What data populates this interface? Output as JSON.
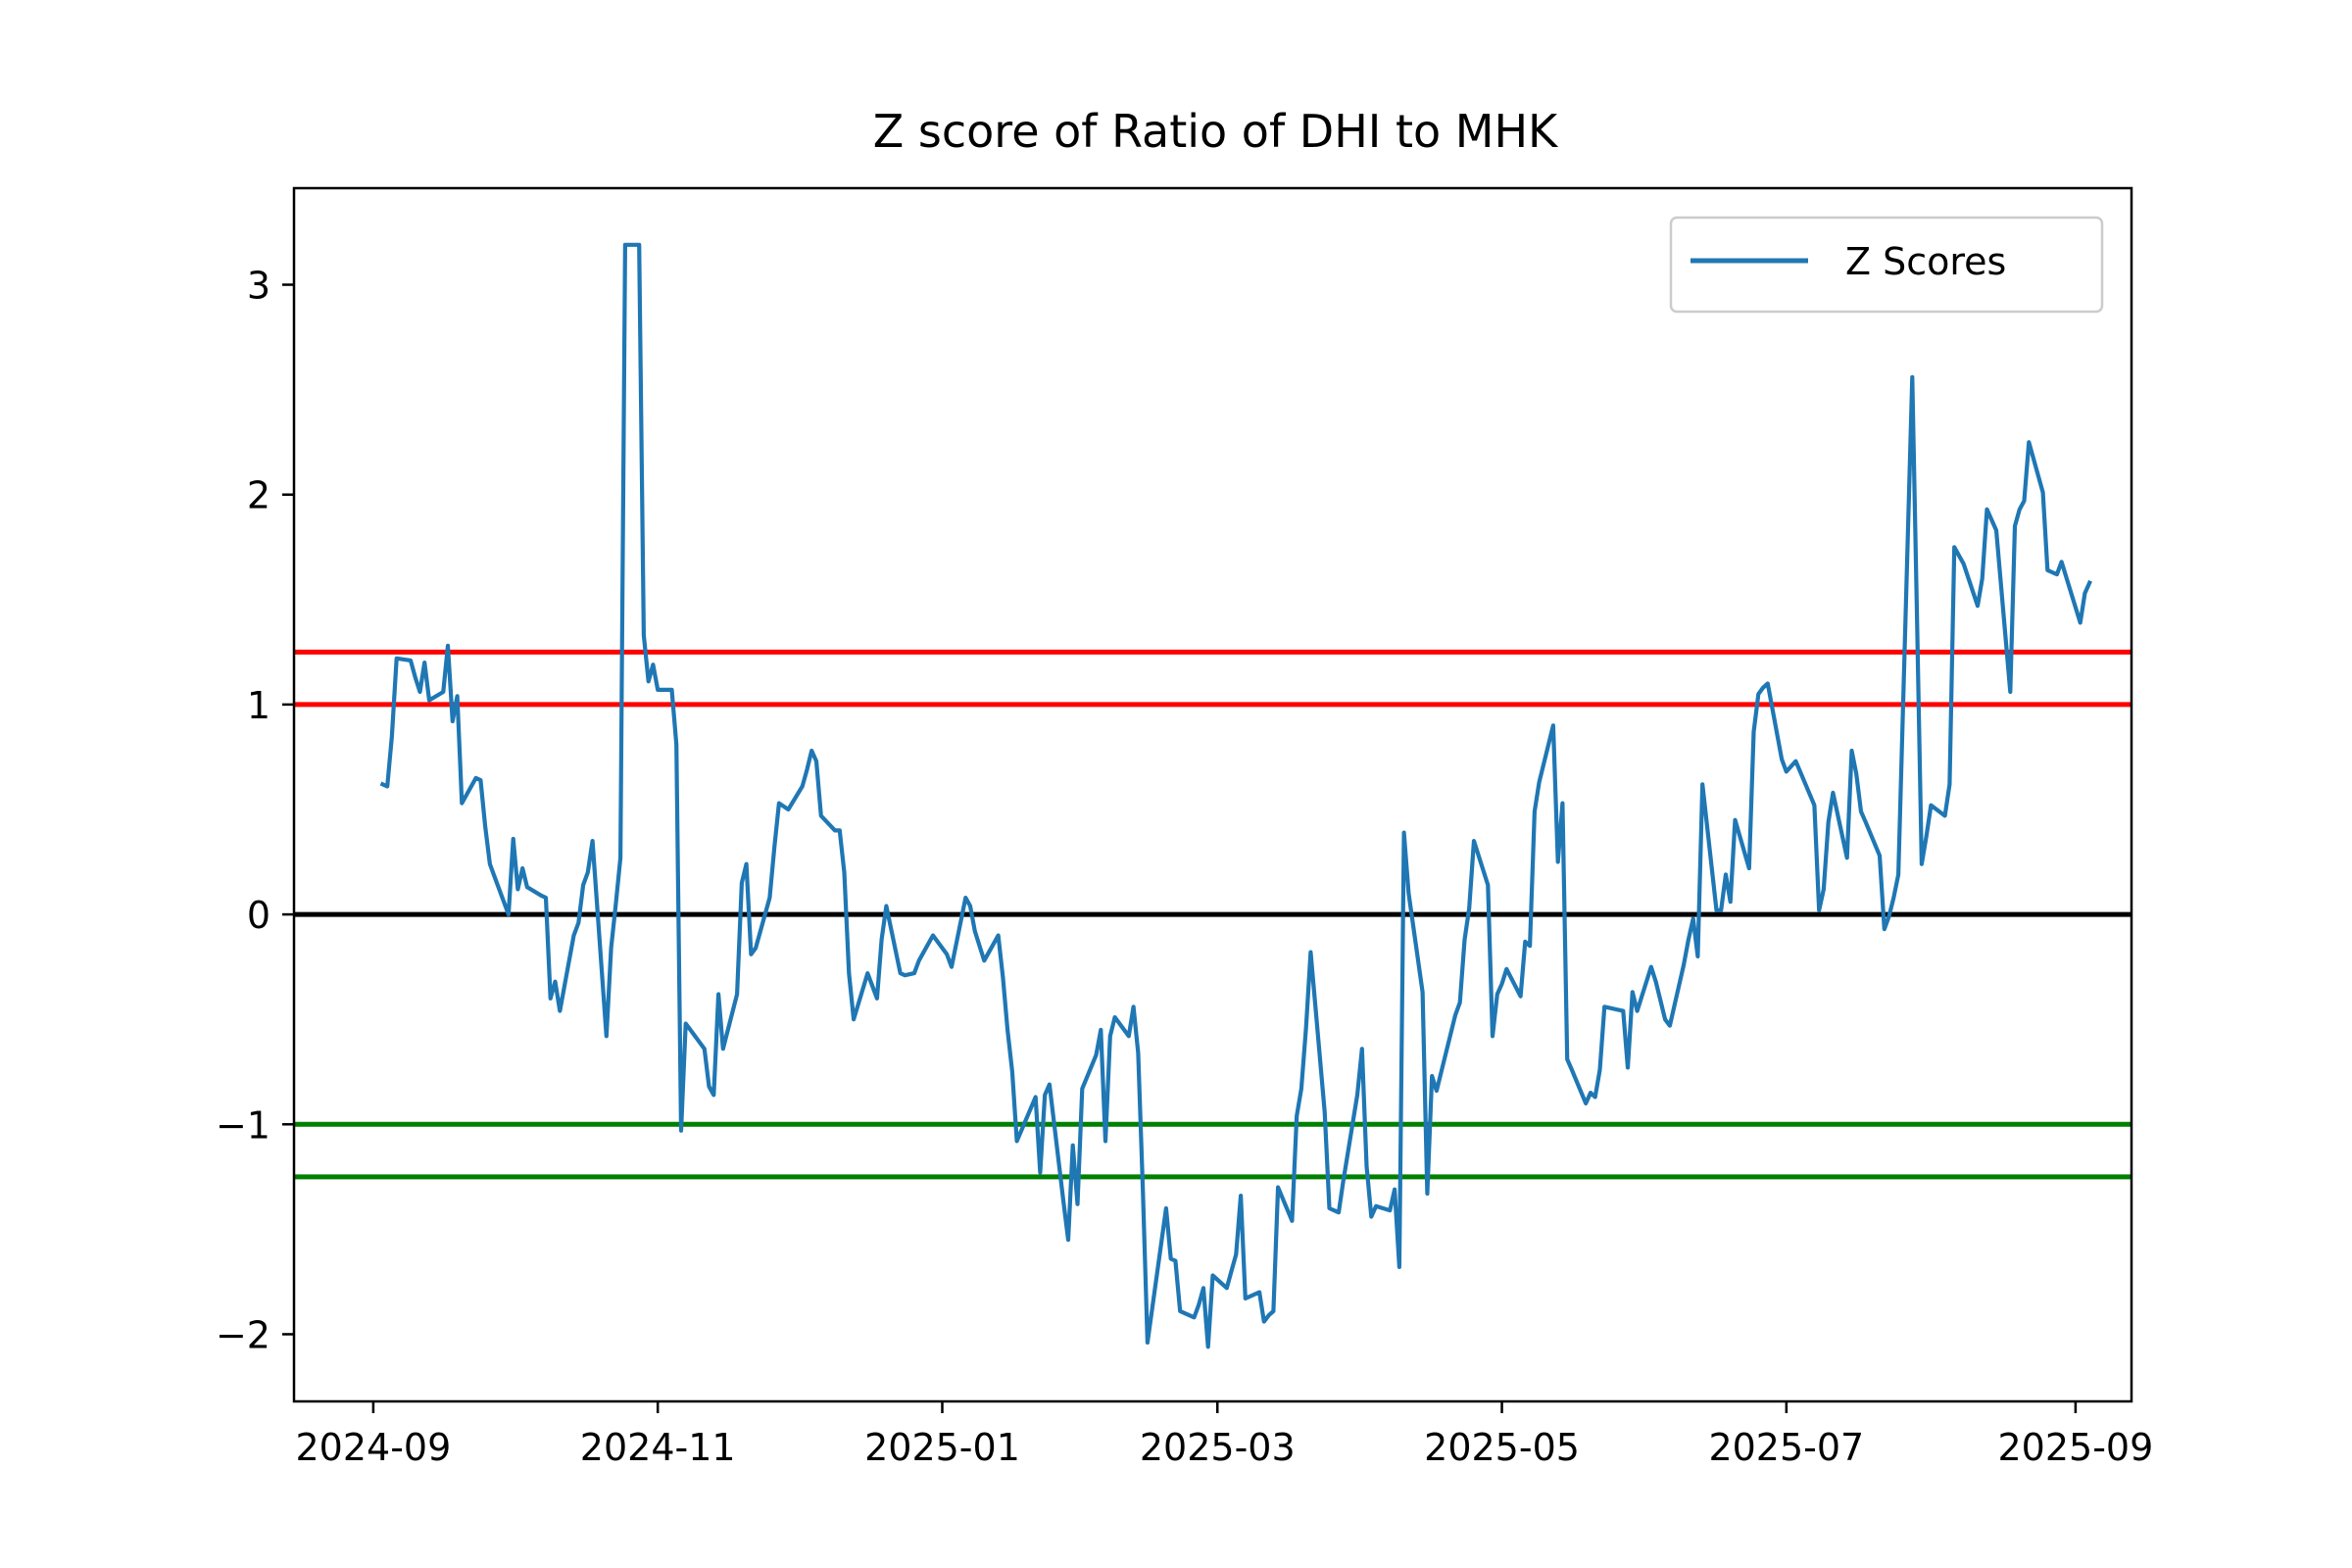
{
  "chart_data": {
    "type": "line",
    "title": "Z score of Ratio of DHI to MHK",
    "xlabel": "",
    "ylabel": "",
    "x_ticks": [
      "2024-09",
      "2024-11",
      "2025-01",
      "2025-03",
      "2025-05",
      "2025-07",
      "2025-09"
    ],
    "y_ticks": [
      3,
      2,
      1,
      0,
      -1,
      -2
    ],
    "y_tick_labels": [
      "3",
      "2",
      "1",
      "0",
      "−1",
      "−2"
    ],
    "xlim": [
      "2024-08-15",
      "2025-09-13"
    ],
    "ylim": [
      -2.32,
      3.46
    ],
    "grid": false,
    "legend_position": "top-right",
    "reference_lines": [
      {
        "y": 1.25,
        "color": "#ff0000"
      },
      {
        "y": 1.0,
        "color": "#ff0000"
      },
      {
        "y": 0.0,
        "color": "#000000"
      },
      {
        "y": -1.0,
        "color": "#008000"
      },
      {
        "y": -1.25,
        "color": "#008000"
      }
    ],
    "series": [
      {
        "name": "Z Scores",
        "color": "#1f77b4",
        "points": [
          [
            "2024-09-03",
            0.62
          ],
          [
            "2024-09-04",
            0.61
          ],
          [
            "2024-09-05",
            0.85
          ],
          [
            "2024-09-06",
            1.22
          ],
          [
            "2024-09-09",
            1.21
          ],
          [
            "2024-09-10",
            1.13
          ],
          [
            "2024-09-11",
            1.06
          ],
          [
            "2024-09-12",
            1.2
          ],
          [
            "2024-09-13",
            1.02
          ],
          [
            "2024-09-16",
            1.06
          ],
          [
            "2024-09-17",
            1.28
          ],
          [
            "2024-09-18",
            0.92
          ],
          [
            "2024-09-19",
            1.04
          ],
          [
            "2024-09-20",
            0.53
          ],
          [
            "2024-09-23",
            0.65
          ],
          [
            "2024-09-24",
            0.64
          ],
          [
            "2024-09-25",
            0.42
          ],
          [
            "2024-09-26",
            0.24
          ],
          [
            "2024-09-27",
            0.18
          ],
          [
            "2024-09-30",
            0.0
          ],
          [
            "2024-10-01",
            0.36
          ],
          [
            "2024-10-02",
            0.12
          ],
          [
            "2024-10-03",
            0.22
          ],
          [
            "2024-10-04",
            0.13
          ],
          [
            "2024-10-07",
            0.09
          ],
          [
            "2024-10-08",
            0.08
          ],
          [
            "2024-10-09",
            -0.4
          ],
          [
            "2024-10-10",
            -0.32
          ],
          [
            "2024-10-11",
            -0.46
          ],
          [
            "2024-10-14",
            -0.1
          ],
          [
            "2024-10-15",
            -0.04
          ],
          [
            "2024-10-16",
            0.14
          ],
          [
            "2024-10-17",
            0.2
          ],
          [
            "2024-10-18",
            0.35
          ],
          [
            "2024-10-21",
            -0.58
          ],
          [
            "2024-10-22",
            -0.16
          ],
          [
            "2024-10-23",
            0.05
          ],
          [
            "2024-10-24",
            0.27
          ],
          [
            "2024-10-25",
            3.19
          ],
          [
            "2024-10-28",
            3.19
          ],
          [
            "2024-10-29",
            1.33
          ],
          [
            "2024-10-30",
            1.11
          ],
          [
            "2024-10-31",
            1.19
          ],
          [
            "2024-11-01",
            1.07
          ],
          [
            "2024-11-04",
            1.07
          ],
          [
            "2024-11-05",
            0.81
          ],
          [
            "2024-11-06",
            -1.03
          ],
          [
            "2024-11-07",
            -0.52
          ],
          [
            "2024-11-08",
            -0.55
          ],
          [
            "2024-11-11",
            -0.64
          ],
          [
            "2024-11-12",
            -0.82
          ],
          [
            "2024-11-13",
            -0.86
          ],
          [
            "2024-11-14",
            -0.38
          ],
          [
            "2024-11-15",
            -0.64
          ],
          [
            "2024-11-18",
            -0.38
          ],
          [
            "2024-11-19",
            0.15
          ],
          [
            "2024-11-20",
            0.24
          ],
          [
            "2024-11-21",
            -0.19
          ],
          [
            "2024-11-22",
            -0.16
          ],
          [
            "2024-11-25",
            0.08
          ],
          [
            "2024-11-26",
            0.32
          ],
          [
            "2024-11-27",
            0.53
          ],
          [
            "2024-11-29",
            0.5
          ],
          [
            "2024-12-02",
            0.61
          ],
          [
            "2024-12-03",
            0.69
          ],
          [
            "2024-12-04",
            0.78
          ],
          [
            "2024-12-05",
            0.73
          ],
          [
            "2024-12-06",
            0.47
          ],
          [
            "2024-12-09",
            0.4
          ],
          [
            "2024-12-10",
            0.4
          ],
          [
            "2024-12-11",
            0.2
          ],
          [
            "2024-12-12",
            -0.28
          ],
          [
            "2024-12-13",
            -0.5
          ],
          [
            "2024-12-16",
            -0.28
          ],
          [
            "2024-12-17",
            -0.34
          ],
          [
            "2024-12-18",
            -0.4
          ],
          [
            "2024-12-19",
            -0.12
          ],
          [
            "2024-12-20",
            0.04
          ],
          [
            "2024-12-23",
            -0.28
          ],
          [
            "2024-12-24",
            -0.29
          ],
          [
            "2024-12-26",
            -0.28
          ],
          [
            "2024-12-27",
            -0.22
          ],
          [
            "2024-12-30",
            -0.1
          ],
          [
            "2025-01-02",
            -0.19
          ],
          [
            "2025-01-03",
            -0.25
          ],
          [
            "2025-01-06",
            0.08
          ],
          [
            "2025-01-07",
            0.04
          ],
          [
            "2025-01-08",
            -0.08
          ],
          [
            "2025-01-10",
            -0.22
          ],
          [
            "2025-01-13",
            -0.1
          ],
          [
            "2025-01-14",
            -0.3
          ],
          [
            "2025-01-15",
            -0.55
          ],
          [
            "2025-01-16",
            -0.75
          ],
          [
            "2025-01-17",
            -1.08
          ],
          [
            "2025-01-21",
            -0.87
          ],
          [
            "2025-01-22",
            -1.23
          ],
          [
            "2025-01-23",
            -0.86
          ],
          [
            "2025-01-24",
            -0.81
          ],
          [
            "2025-01-27",
            -1.37
          ],
          [
            "2025-01-28",
            -1.55
          ],
          [
            "2025-01-29",
            -1.1
          ],
          [
            "2025-01-30",
            -1.38
          ],
          [
            "2025-01-31",
            -0.83
          ],
          [
            "2025-02-03",
            -0.67
          ],
          [
            "2025-02-04",
            -0.55
          ],
          [
            "2025-02-05",
            -1.08
          ],
          [
            "2025-02-06",
            -0.58
          ],
          [
            "2025-02-07",
            -0.49
          ],
          [
            "2025-02-10",
            -0.58
          ],
          [
            "2025-02-11",
            -0.44
          ],
          [
            "2025-02-12",
            -0.66
          ],
          [
            "2025-02-13",
            -1.3
          ],
          [
            "2025-02-14",
            -2.04
          ],
          [
            "2025-02-18",
            -1.4
          ],
          [
            "2025-02-19",
            -1.64
          ],
          [
            "2025-02-20",
            -1.65
          ],
          [
            "2025-02-21",
            -1.89
          ],
          [
            "2025-02-24",
            -1.92
          ],
          [
            "2025-02-25",
            -1.86
          ],
          [
            "2025-02-26",
            -1.78
          ],
          [
            "2025-02-27",
            -2.06
          ],
          [
            "2025-02-28",
            -1.72
          ],
          [
            "2025-03-03",
            -1.78
          ],
          [
            "2025-03-04",
            -1.7
          ],
          [
            "2025-03-05",
            -1.62
          ],
          [
            "2025-03-06",
            -1.34
          ],
          [
            "2025-03-07",
            -1.83
          ],
          [
            "2025-03-10",
            -1.8
          ],
          [
            "2025-03-11",
            -1.94
          ],
          [
            "2025-03-12",
            -1.91
          ],
          [
            "2025-03-13",
            -1.89
          ],
          [
            "2025-03-14",
            -1.3
          ],
          [
            "2025-03-17",
            -1.46
          ],
          [
            "2025-03-18",
            -0.96
          ],
          [
            "2025-03-19",
            -0.83
          ],
          [
            "2025-03-20",
            -0.54
          ],
          [
            "2025-03-21",
            -0.18
          ],
          [
            "2025-03-24",
            -0.94
          ],
          [
            "2025-03-25",
            -1.4
          ],
          [
            "2025-03-26",
            -1.41
          ],
          [
            "2025-03-27",
            -1.42
          ],
          [
            "2025-03-28",
            -1.27
          ],
          [
            "2025-03-31",
            -0.86
          ],
          [
            "2025-04-01",
            -0.64
          ],
          [
            "2025-04-02",
            -1.2
          ],
          [
            "2025-04-03",
            -1.44
          ],
          [
            "2025-04-04",
            -1.39
          ],
          [
            "2025-04-07",
            -1.41
          ],
          [
            "2025-04-08",
            -1.31
          ],
          [
            "2025-04-09",
            -1.68
          ],
          [
            "2025-04-10",
            0.39
          ],
          [
            "2025-04-11",
            0.1
          ],
          [
            "2025-04-14",
            -0.37
          ],
          [
            "2025-04-15",
            -1.33
          ],
          [
            "2025-04-16",
            -0.77
          ],
          [
            "2025-04-17",
            -0.84
          ],
          [
            "2025-04-21",
            -0.48
          ],
          [
            "2025-04-22",
            -0.42
          ],
          [
            "2025-04-23",
            -0.12
          ],
          [
            "2025-04-24",
            0.03
          ],
          [
            "2025-04-25",
            0.35
          ],
          [
            "2025-04-28",
            0.14
          ],
          [
            "2025-04-29",
            -0.58
          ],
          [
            "2025-04-30",
            -0.38
          ],
          [
            "2025-05-01",
            -0.33
          ],
          [
            "2025-05-02",
            -0.26
          ],
          [
            "2025-05-05",
            -0.39
          ],
          [
            "2025-05-06",
            -0.13
          ],
          [
            "2025-05-07",
            -0.15
          ],
          [
            "2025-05-08",
            0.49
          ],
          [
            "2025-05-09",
            0.63
          ],
          [
            "2025-05-12",
            0.9
          ],
          [
            "2025-05-13",
            0.25
          ],
          [
            "2025-05-14",
            0.53
          ],
          [
            "2025-05-15",
            -0.69
          ],
          [
            "2025-05-16",
            -0.74
          ],
          [
            "2025-05-19",
            -0.9
          ],
          [
            "2025-05-20",
            -0.85
          ],
          [
            "2025-05-21",
            -0.87
          ],
          [
            "2025-05-22",
            -0.74
          ],
          [
            "2025-05-23",
            -0.44
          ],
          [
            "2025-05-27",
            -0.46
          ],
          [
            "2025-05-28",
            -0.73
          ],
          [
            "2025-05-29",
            -0.37
          ],
          [
            "2025-05-30",
            -0.46
          ],
          [
            "2025-06-02",
            -0.25
          ],
          [
            "2025-06-03",
            -0.32
          ],
          [
            "2025-06-05",
            -0.5
          ],
          [
            "2025-06-06",
            -0.53
          ],
          [
            "2025-06-09",
            -0.24
          ],
          [
            "2025-06-10",
            -0.12
          ],
          [
            "2025-06-11",
            -0.02
          ],
          [
            "2025-06-12",
            -0.2
          ],
          [
            "2025-06-13",
            0.62
          ],
          [
            "2025-06-16",
            0.02
          ],
          [
            "2025-06-17",
            0.02
          ],
          [
            "2025-06-18",
            0.19
          ],
          [
            "2025-06-19",
            0.06
          ],
          [
            "2025-06-20",
            0.45
          ],
          [
            "2025-06-23",
            0.22
          ],
          [
            "2025-06-24",
            0.87
          ],
          [
            "2025-06-25",
            1.05
          ],
          [
            "2025-06-26",
            1.08
          ],
          [
            "2025-06-27",
            1.1
          ],
          [
            "2025-06-30",
            0.74
          ],
          [
            "2025-07-01",
            0.68
          ],
          [
            "2025-07-03",
            0.73
          ],
          [
            "2025-07-07",
            0.52
          ],
          [
            "2025-07-08",
            0.02
          ],
          [
            "2025-07-09",
            0.12
          ],
          [
            "2025-07-10",
            0.44
          ],
          [
            "2025-07-11",
            0.58
          ],
          [
            "2025-07-14",
            0.27
          ],
          [
            "2025-07-15",
            0.78
          ],
          [
            "2025-07-16",
            0.67
          ],
          [
            "2025-07-17",
            0.49
          ],
          [
            "2025-07-18",
            0.44
          ],
          [
            "2025-07-21",
            0.28
          ],
          [
            "2025-07-22",
            -0.07
          ],
          [
            "2025-07-23",
            -0.01
          ],
          [
            "2025-07-24",
            0.08
          ],
          [
            "2025-07-25",
            0.19
          ],
          [
            "2025-07-28",
            2.56
          ],
          [
            "2025-07-29",
            1.42
          ],
          [
            "2025-07-30",
            0.24
          ],
          [
            "2025-07-31",
            0.37
          ],
          [
            "2025-08-01",
            0.52
          ],
          [
            "2025-08-04",
            0.47
          ],
          [
            "2025-08-05",
            0.62
          ],
          [
            "2025-08-06",
            1.75
          ],
          [
            "2025-08-07",
            1.71
          ],
          [
            "2025-08-08",
            1.67
          ],
          [
            "2025-08-11",
            1.47
          ],
          [
            "2025-08-12",
            1.6
          ],
          [
            "2025-08-13",
            1.93
          ],
          [
            "2025-08-14",
            1.88
          ],
          [
            "2025-08-15",
            1.83
          ],
          [
            "2025-08-18",
            1.06
          ],
          [
            "2025-08-19",
            1.85
          ],
          [
            "2025-08-20",
            1.93
          ],
          [
            "2025-08-21",
            1.97
          ],
          [
            "2025-08-22",
            2.25
          ],
          [
            "2025-08-25",
            2.01
          ],
          [
            "2025-08-26",
            1.64
          ],
          [
            "2025-08-27",
            1.63
          ],
          [
            "2025-08-28",
            1.62
          ],
          [
            "2025-08-29",
            1.68
          ],
          [
            "2025-09-02",
            1.39
          ],
          [
            "2025-09-03",
            1.53
          ],
          [
            "2025-09-04",
            1.58
          ]
        ]
      }
    ]
  }
}
